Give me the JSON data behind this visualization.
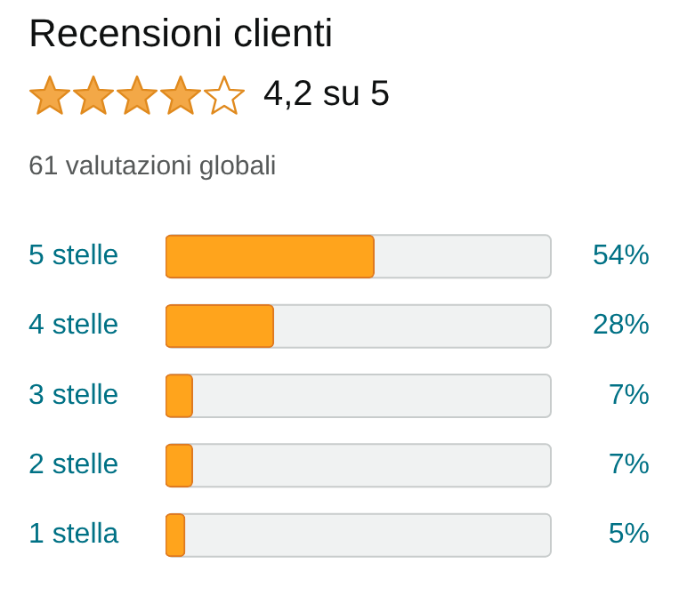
{
  "chart_data": {
    "type": "bar",
    "orientation": "horizontal",
    "title": "Recensioni clienti",
    "subtitle": "61 valutazioni globali",
    "annotations": [
      "4,2 su 5"
    ],
    "categories": [
      "5 stelle",
      "4 stelle",
      "3 stelle",
      "2 stelle",
      "1 stella"
    ],
    "values": [
      54,
      28,
      7,
      7,
      5
    ],
    "value_labels": [
      "54%",
      "28%",
      "7%",
      "7%",
      "5%"
    ],
    "color": "#ffa41c",
    "xlim": [
      0,
      100
    ],
    "legend": false,
    "tick_labels": "y"
  }
}
